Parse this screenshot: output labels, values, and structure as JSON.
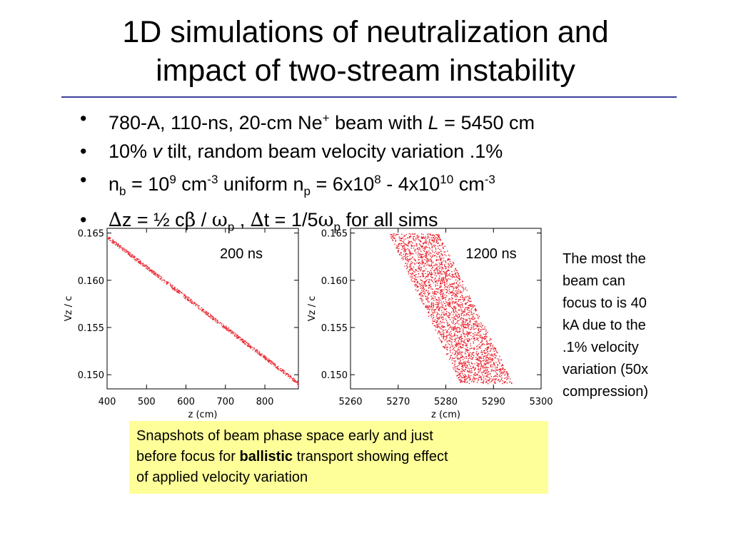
{
  "slide": {
    "title_line1": "1D simulations of neutralization and",
    "title_line2": "impact of two-stream instability",
    "bullet1": {
      "a": "780-A, 110-ns, 20-cm Ne",
      "sup": "+",
      "b": "  beam with  ",
      "var": "L",
      "c": " = 5450 cm"
    },
    "bullet2": {
      "a": "10% ",
      "var": "v",
      "b": " tilt, random beam velocity variation  .1%"
    },
    "bullet3": {
      "a": "n",
      "sub1": "b",
      "b": " = 10",
      "sup1": "9",
      "c": " cm",
      "sup2": "-3",
      "d": " uniform n",
      "sub2": "p",
      "e": " = 6x10",
      "sup3": "8",
      "f": " - 4x10",
      "sup4": "10",
      "g": " cm",
      "sup5": "-3"
    },
    "bullet4": {
      "d1": "∆",
      "a": "z = ½ c",
      "beta": "β",
      "b": " / ",
      "omega1": "ω",
      "sub1": "p",
      "c": " , ",
      "d2": "∆",
      "d": "t = 1/5",
      "omega2": "ω",
      "sub2": "p",
      "e": "  for all sims"
    },
    "side_note": [
      "The most the",
      "beam can",
      "focus to is 40",
      "kA due to the",
      ".1%  velocity",
      "variation (50x",
      "compression)"
    ],
    "caption": {
      "line1": "Snapshots of beam phase space early and just",
      "line2_a": "before focus for ",
      "line2_bold": "ballistic",
      "line2_b": " transport showing effect",
      "line3": "of  applied velocity variation"
    }
  },
  "chart_data": [
    {
      "type": "scatter",
      "annotation": "200 ns",
      "xlabel": "z (cm)",
      "ylabel": "Vz / c",
      "xlim": [
        400,
        885
      ],
      "ylim": [
        0.1485,
        0.1655
      ],
      "xticks": [
        400,
        500,
        600,
        700,
        800
      ],
      "yticks": [
        0.15,
        0.155,
        0.16,
        0.165
      ],
      "ytick_labels": [
        "0.150",
        "0.155",
        "0.160",
        "0.165"
      ],
      "color": "#e8202a",
      "description_of_points": "thin diagonal band of particles",
      "band": {
        "x": [
          400,
          885
        ],
        "y": [
          0.1646,
          0.1491
        ],
        "spread_vz": 0.0002
      }
    },
    {
      "type": "scatter",
      "annotation": "1200 ns",
      "xlabel": "z (cm)",
      "ylabel": "Vz / c",
      "xlim": [
        5260,
        5300
      ],
      "ylim": [
        0.1485,
        0.1655
      ],
      "xticks": [
        5260,
        5270,
        5280,
        5290,
        5300
      ],
      "yticks": [
        0.15,
        0.155,
        0.16,
        0.165
      ],
      "ytick_labels": [
        "0.150",
        "0.155",
        "0.160",
        "0.165"
      ],
      "color": "#e8202a",
      "band": {
        "x_left_top": 5268.0,
        "x_right_top": 5278.5,
        "x_left_bottom": 5283.0,
        "x_right_bottom": 5294.0,
        "y_top": 0.165,
        "y_bottom": 0.1491
      }
    }
  ]
}
